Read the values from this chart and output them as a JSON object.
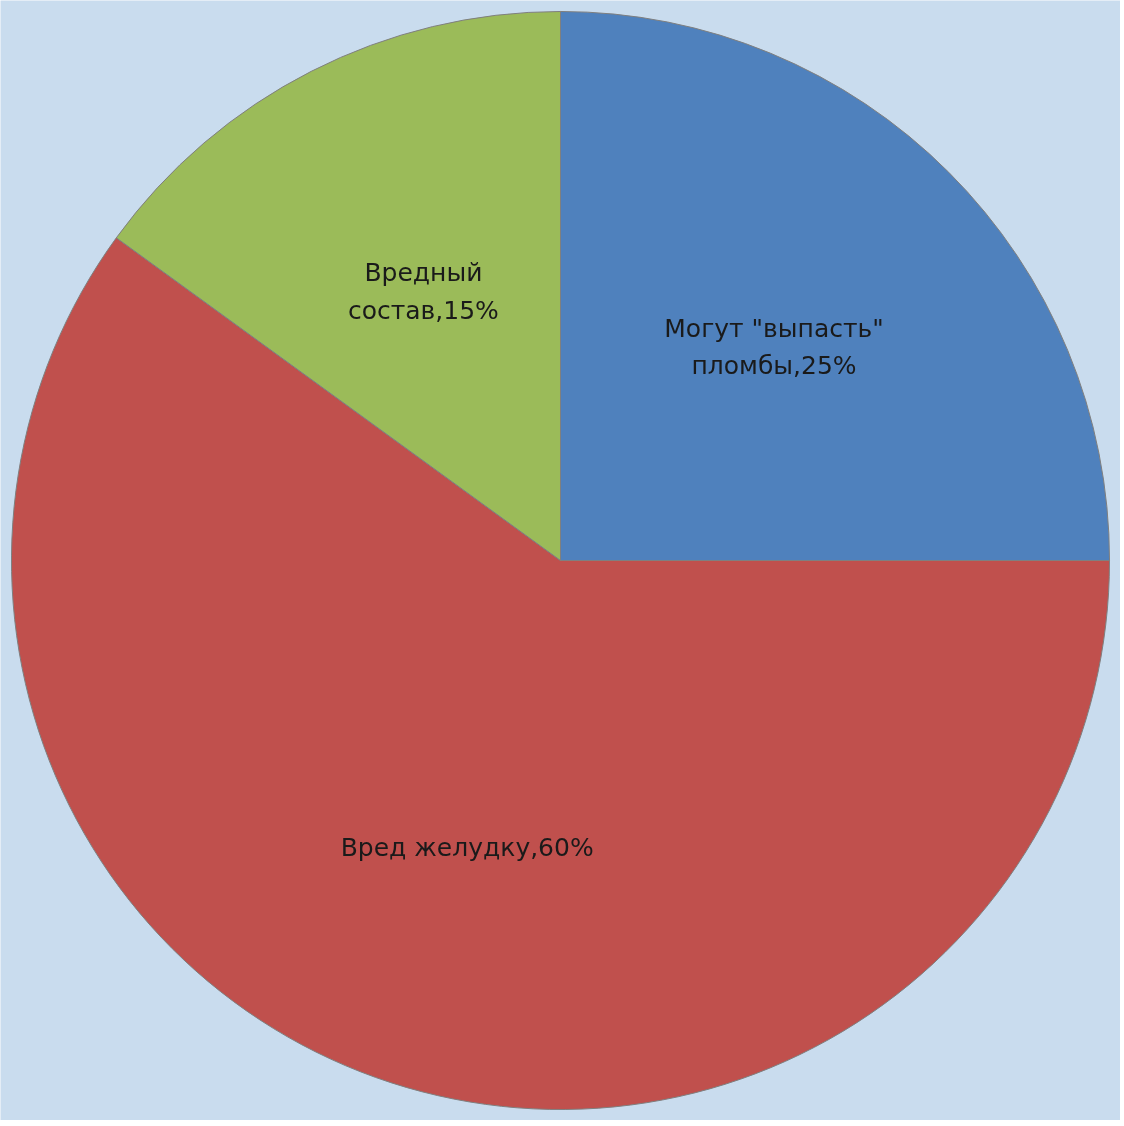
{
  "chart_data": {
    "type": "pie",
    "categories": [
      "Могут \"выпасть\" пломбы",
      "Вред желудку",
      "Вредный состав"
    ],
    "values": [
      25,
      60,
      15
    ],
    "colors": [
      "#4f81bd",
      "#c0504d",
      "#9bbb59"
    ],
    "value_labels": [
      "25%",
      "60%",
      "15%"
    ]
  }
}
